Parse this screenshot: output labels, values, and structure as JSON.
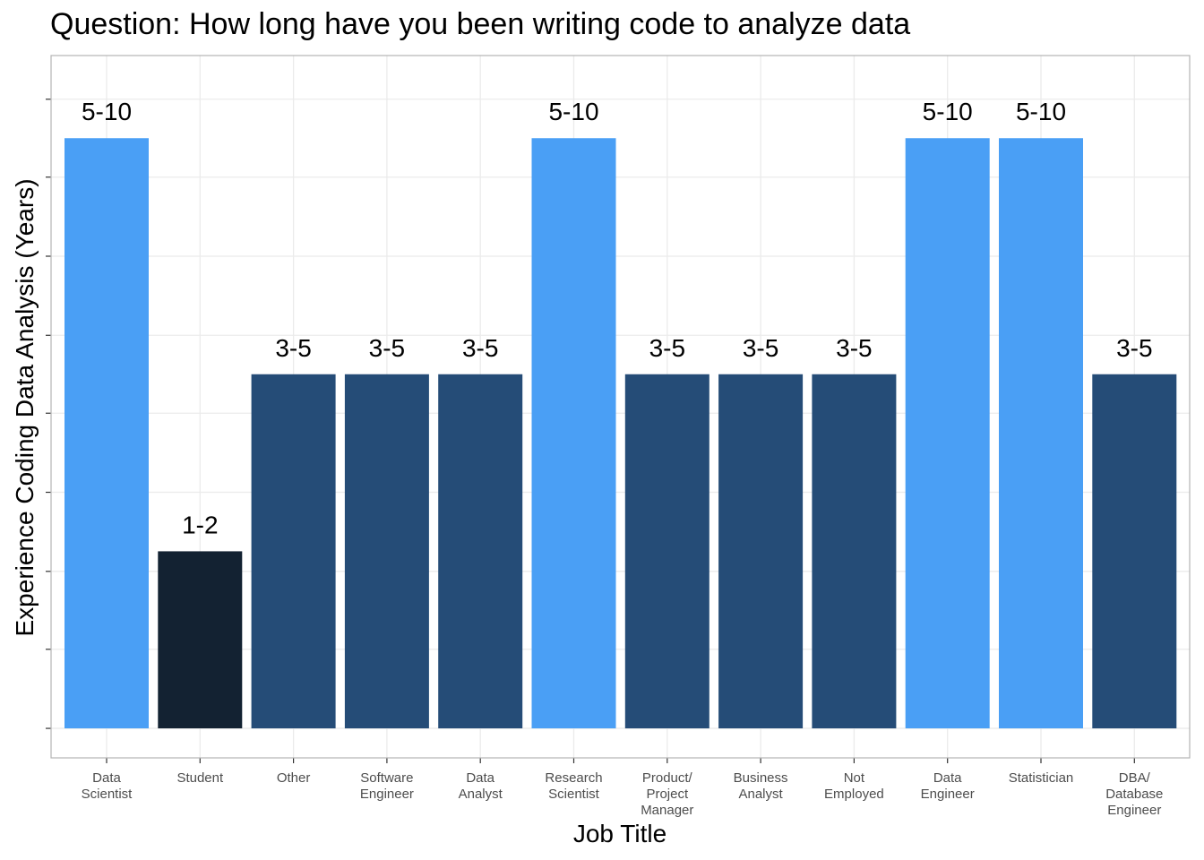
{
  "chart_data": {
    "type": "bar",
    "title": "Question: How long have you been writing code to analyze data",
    "xlabel": "Job Title",
    "ylabel": "Experience Coding Data Analysis (Years)",
    "categories": [
      [
        "Data",
        "Scientist"
      ],
      [
        "Student"
      ],
      [
        "Other"
      ],
      [
        "Software",
        "Engineer"
      ],
      [
        "Data",
        "Analyst"
      ],
      [
        "Research",
        "Scientist"
      ],
      [
        "Product/",
        "Project",
        "Manager"
      ],
      [
        "Business",
        "Analyst"
      ],
      [
        "Not",
        "Employed"
      ],
      [
        "Data",
        "Engineer"
      ],
      [
        "Statistician"
      ],
      [
        "DBA/",
        "Database",
        "Engineer"
      ]
    ],
    "values": [
      5.0,
      1.5,
      3.0,
      3.0,
      3.0,
      5.0,
      3.0,
      3.0,
      3.0,
      5.0,
      5.0,
      3.0
    ],
    "labels": [
      "5-10",
      "1-2",
      "3-5",
      "3-5",
      "3-5",
      "5-10",
      "3-5",
      "3-5",
      "3-5",
      "5-10",
      "5-10",
      "3-5"
    ],
    "colors": {
      "5-10": "#4a9ff5",
      "3-5": "#254c77",
      "1-2": "#132232"
    },
    "ylim": [
      -0.25,
      5.7
    ],
    "y_gridlines": [
      0,
      0.67,
      1.33,
      2.0,
      2.67,
      3.33,
      4.0,
      4.67,
      5.33
    ],
    "grid": true,
    "legend": "none"
  }
}
